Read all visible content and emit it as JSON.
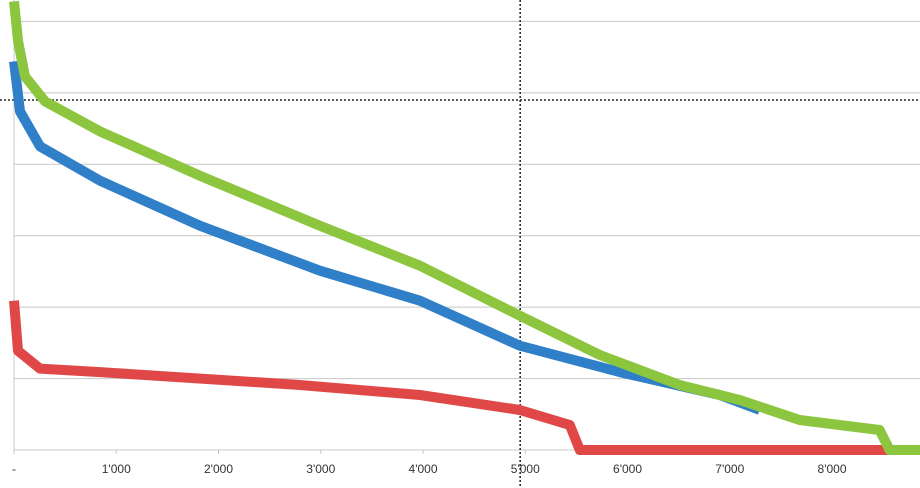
{
  "chart_data": {
    "type": "line",
    "xlim": [
      0,
      8860
    ],
    "xticks": [
      {
        "value": 0,
        "label": "-"
      },
      {
        "value": 1000,
        "label": "1'000"
      },
      {
        "value": 2000,
        "label": "2'000"
      },
      {
        "value": 3000,
        "label": "3'000"
      },
      {
        "value": 4000,
        "label": "4'000"
      },
      {
        "value": 5000,
        "label": "5'000"
      },
      {
        "value": 6000,
        "label": "6'000"
      },
      {
        "value": 7000,
        "label": "7'000"
      },
      {
        "value": 8000,
        "label": "8'000"
      }
    ],
    "ylim": [
      0,
      6.3
    ],
    "yticks": [
      0,
      1,
      2,
      3,
      4,
      5,
      6
    ],
    "grid": true,
    "reference_lines": {
      "x": 4950,
      "y": 4.9
    },
    "series": [
      {
        "color": "#8cc63f",
        "x": [
          0,
          40,
          108,
          303,
          841,
          1818,
          2991,
          3969,
          4946,
          5729,
          6510,
          7097,
          7683,
          8465,
          8563,
          8860
        ],
        "values": [
          6.28,
          5.72,
          5.23,
          4.88,
          4.46,
          3.84,
          3.14,
          2.58,
          1.88,
          1.33,
          0.91,
          0.7,
          0.42,
          0.28,
          0,
          0
        ]
      },
      {
        "color": "#2f80c8",
        "x": [
          0,
          59,
          254,
          841,
          1818,
          2991,
          3969,
          4946,
          5924,
          6901,
          7292
        ],
        "values": [
          5.44,
          4.74,
          4.25,
          3.77,
          3.14,
          2.51,
          2.09,
          1.46,
          1.09,
          0.77,
          0.56
        ]
      },
      {
        "color": "#e04848",
        "x": [
          0,
          39,
          254,
          841,
          2796,
          3969,
          4946,
          5435,
          5533,
          8860
        ],
        "values": [
          2.09,
          1.39,
          1.14,
          1.09,
          0.91,
          0.77,
          0.56,
          0.35,
          0,
          0
        ]
      }
    ]
  }
}
